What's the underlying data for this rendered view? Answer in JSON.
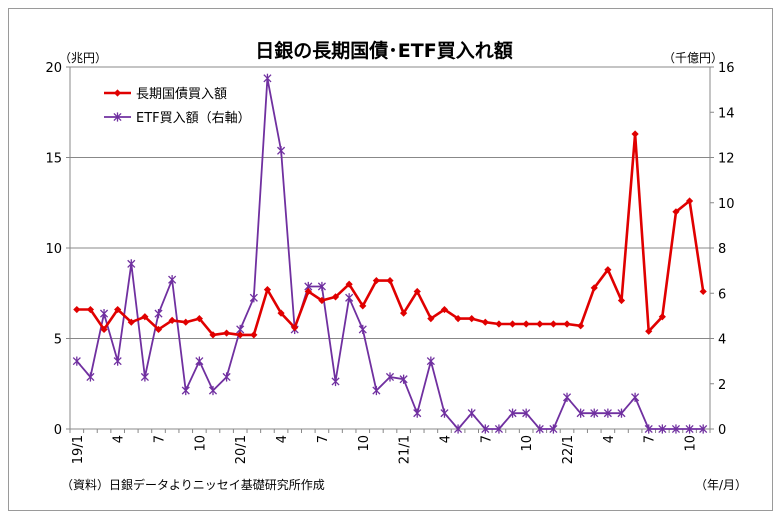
{
  "chart_data": {
    "type": "line",
    "title": "日銀の長期国債･ETF買入れ額",
    "left_axis_unit": "（兆円）",
    "right_axis_unit": "（千億円）",
    "x_axis_unit": "（年/月）",
    "source_note": "（資料）日銀データよりニッセイ基礎研究所作成",
    "x_tick_labels": [
      "19/1",
      "4",
      "7",
      "10",
      "20/1",
      "4",
      "7",
      "10",
      "21/1",
      "4",
      "7",
      "10",
      "22/1",
      "4",
      "7",
      "10"
    ],
    "x_tick_positions": [
      0,
      3,
      6,
      9,
      12,
      15,
      18,
      21,
      24,
      27,
      30,
      33,
      36,
      39,
      42,
      45
    ],
    "y_left_ticks": [
      "0",
      "5",
      "10",
      "15",
      "20"
    ],
    "y_right_ticks": [
      "0",
      "2",
      "4",
      "6",
      "8",
      "10",
      "12",
      "14",
      "16"
    ],
    "y_left_range": [
      0,
      20
    ],
    "y_right_range": [
      0,
      16
    ],
    "grid": "horizontal",
    "legend_position": "top-left",
    "series": [
      {
        "name": "長期国債買入額",
        "axis": "left",
        "color": "#e00000",
        "marker": "diamond",
        "values": [
          6.6,
          6.6,
          5.5,
          6.6,
          5.9,
          6.2,
          5.5,
          6.0,
          5.9,
          6.1,
          5.2,
          5.3,
          5.2,
          5.2,
          7.7,
          6.4,
          5.6,
          7.6,
          7.1,
          7.3,
          8.0,
          6.8,
          8.2,
          8.2,
          6.4,
          7.6,
          6.1,
          6.6,
          6.1,
          6.1,
          5.9,
          5.8,
          5.8,
          5.8,
          5.8,
          5.8,
          5.8,
          5.7,
          7.8,
          8.8,
          7.1,
          16.3,
          5.4,
          6.2,
          12.0,
          12.6,
          7.6
        ]
      },
      {
        "name": "ETF買入額（右軸）",
        "axis": "right",
        "color": "#7030a0",
        "marker": "asterisk",
        "values": [
          3.0,
          2.3,
          5.1,
          3.0,
          7.3,
          2.3,
          5.1,
          6.6,
          1.7,
          3.0,
          1.7,
          2.3,
          4.4,
          5.8,
          15.5,
          12.3,
          4.4,
          6.3,
          6.3,
          2.1,
          5.8,
          4.4,
          1.7,
          2.3,
          2.2,
          0.7,
          3.0,
          0.7,
          0.0,
          0.7,
          0.0,
          0.0,
          0.7,
          0.7,
          0.0,
          0.0,
          1.4,
          0.7,
          0.7,
          0.7,
          0.7,
          1.4,
          0.0,
          0.0,
          0.0,
          0.0,
          0.0
        ]
      }
    ]
  }
}
